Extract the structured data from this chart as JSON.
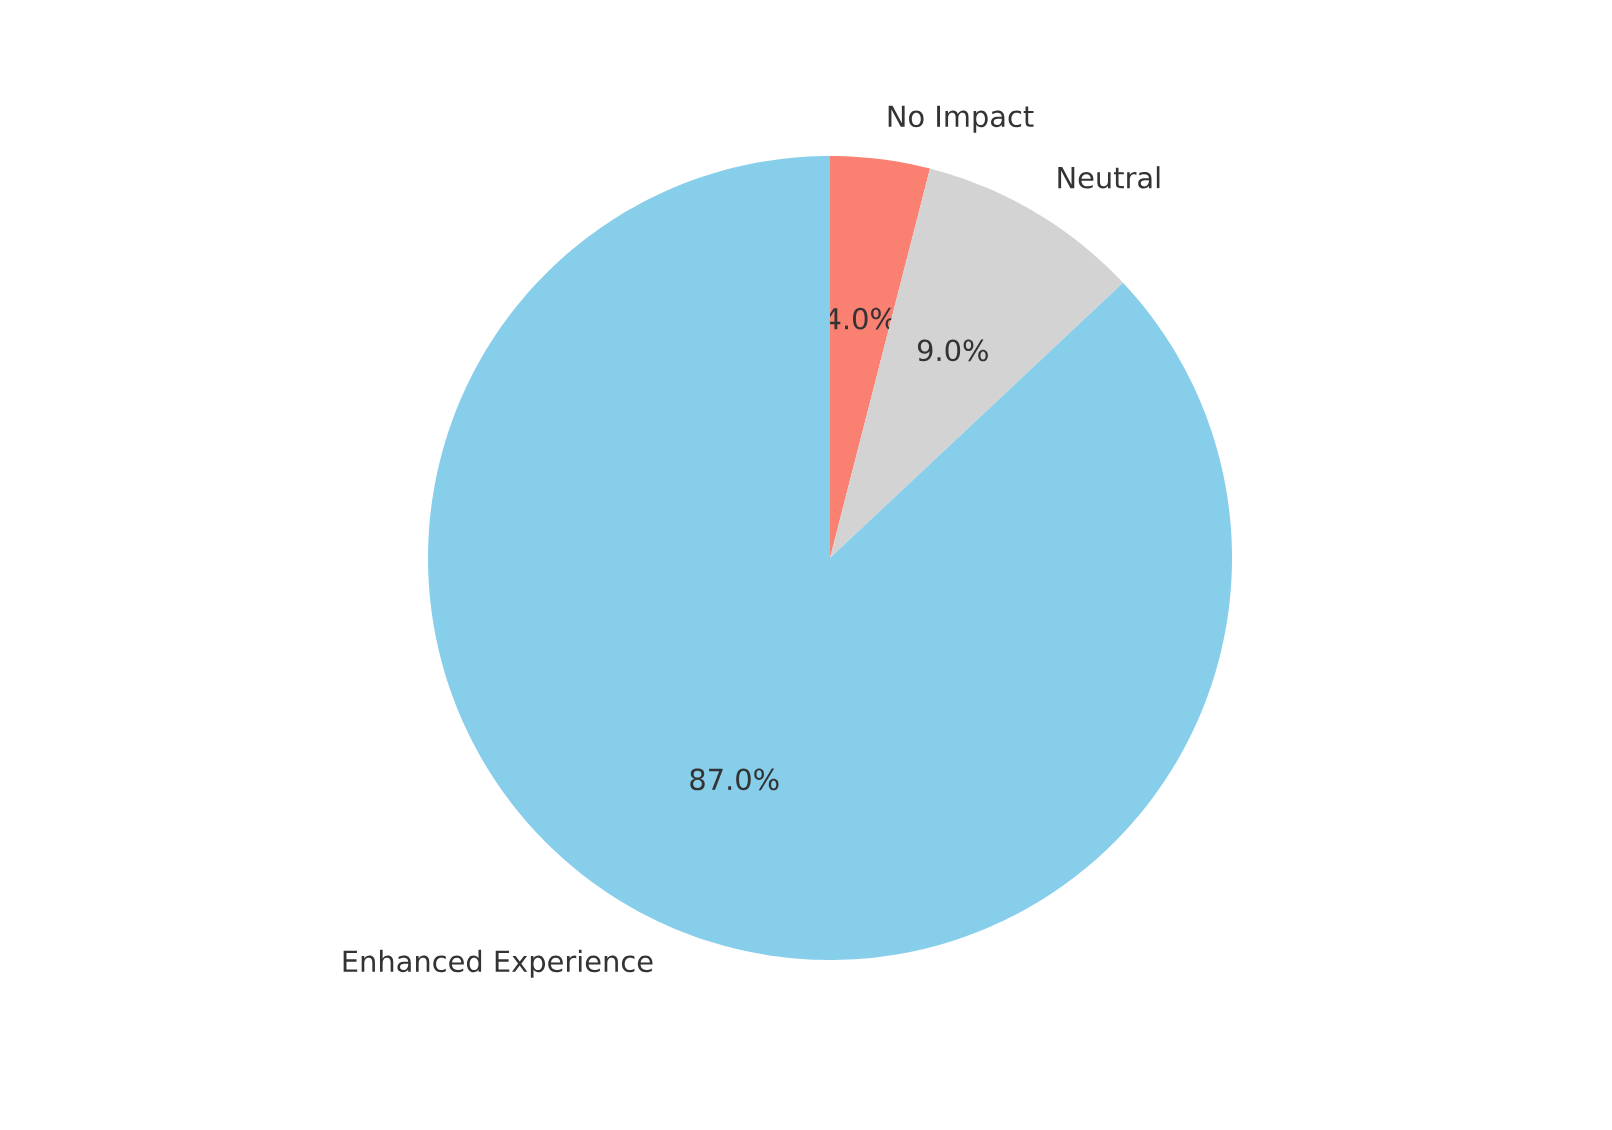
{
  "chart_data": {
    "type": "pie",
    "categories": [
      "No Impact",
      "Neutral",
      "Enhanced Experience"
    ],
    "values": [
      4.0,
      9.0,
      87.0
    ],
    "colors": [
      "#fa8072",
      "#d3d3d3",
      "#87ceeb"
    ],
    "value_labels": [
      "4.0%",
      "9.0%",
      "87.0%"
    ]
  }
}
